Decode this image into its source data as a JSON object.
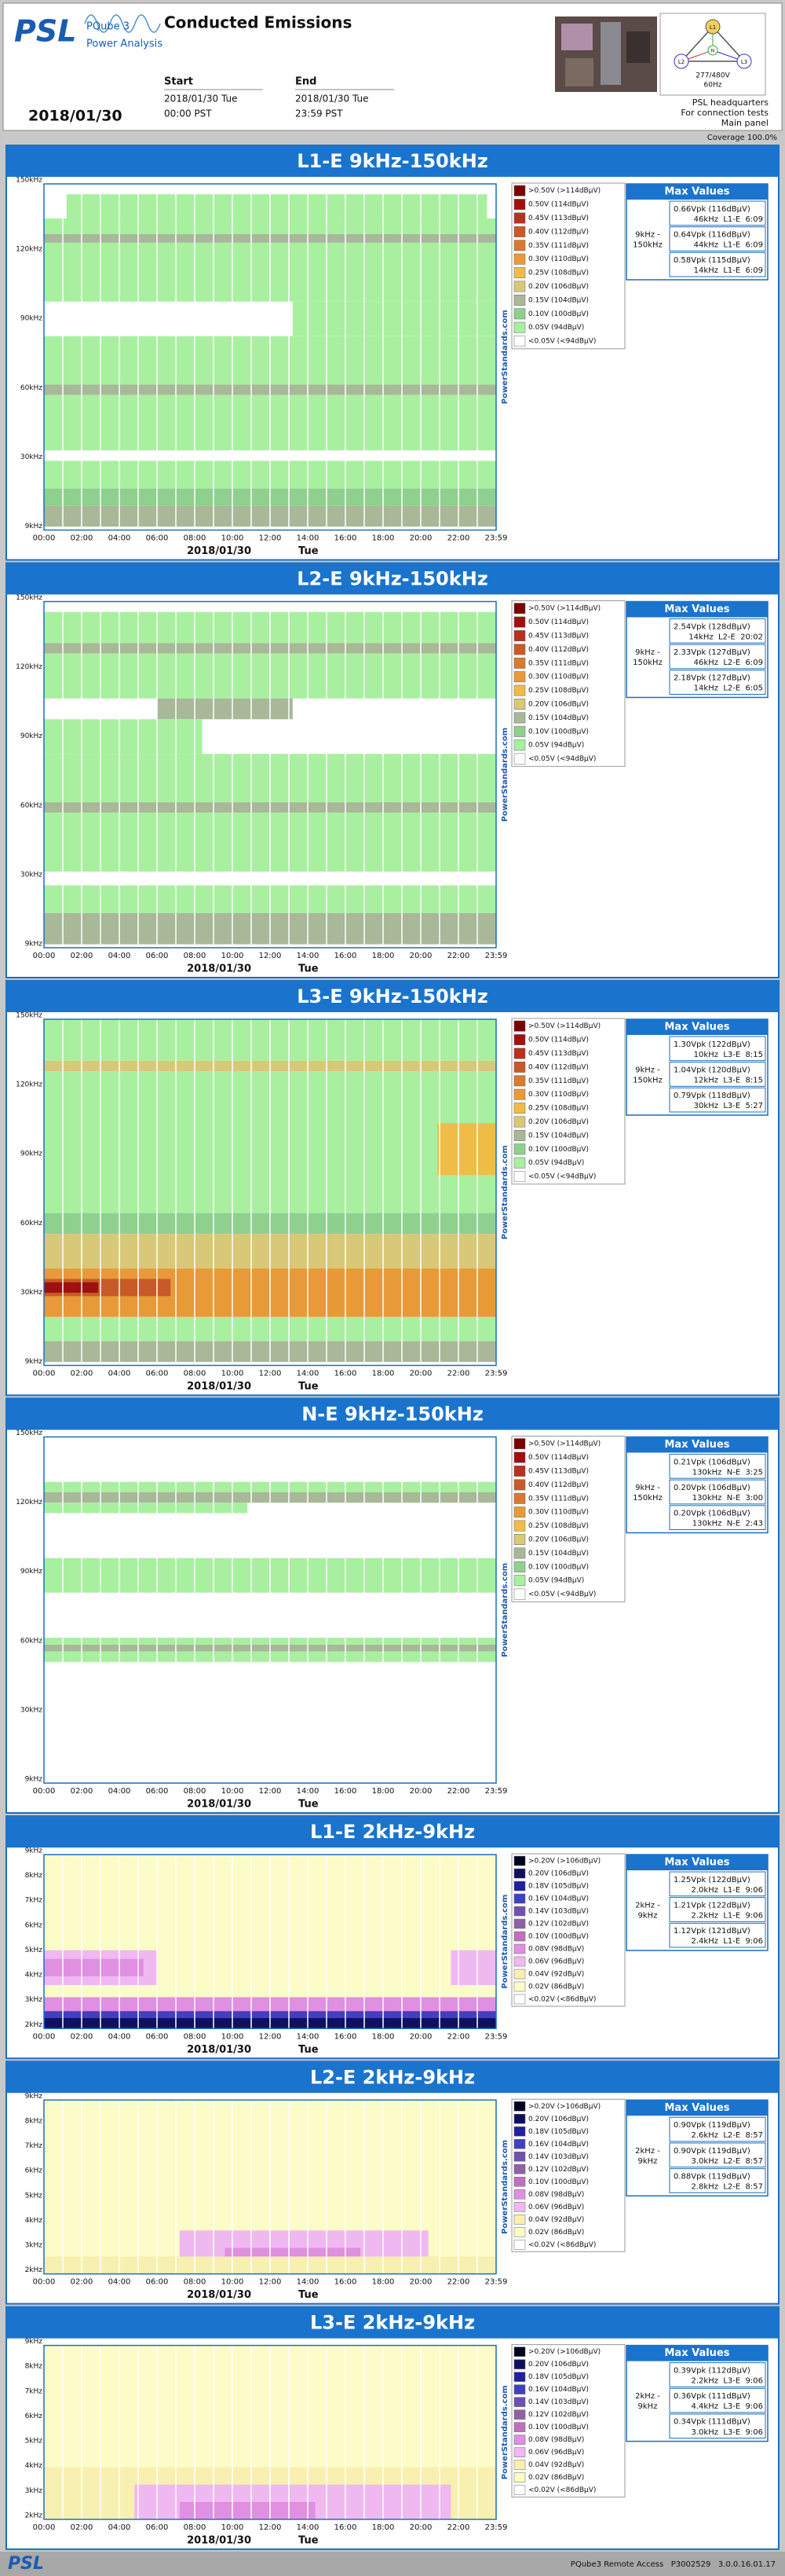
{
  "header": {
    "logo": "PSL",
    "product": "PQube 3",
    "subtitle": "Power Analysis",
    "title": "Conducted Emissions",
    "start": {
      "label": "Start",
      "date": "2018/01/30 Tue",
      "time": "00:00 PST"
    },
    "end": {
      "label": "End",
      "date": "2018/01/30 Tue",
      "time": "23:59 PST"
    },
    "report_date": "2018/01/30",
    "diagram": {
      "phases": [
        "L1",
        "L2",
        "L3"
      ],
      "neutral": "N",
      "voltage": "277/480V",
      "frequency": "60Hz"
    },
    "site": [
      "PSL headquarters",
      "For connection tests",
      "Main panel"
    ],
    "coverage": "Coverage 100.0%"
  },
  "panels": [
    {
      "title": "L1-E 9kHz-150kHz",
      "y_labels": [
        "150kHz",
        "120kHz",
        "90kHz",
        "60kHz",
        "30kHz",
        "9kHz"
      ],
      "x_labels": [
        "00:00",
        "02:00",
        "04:00",
        "06:00",
        "08:00",
        "10:00",
        "12:00",
        "14:00",
        "16:00",
        "18:00",
        "20:00",
        "22:00",
        "23:59"
      ],
      "date": "2018/01/30",
      "day": "Tue",
      "watermark": "PowerStandards.com",
      "legend": {
        "labels": [
          ">0.50V (>114dBμV)",
          "0.50V (114dBμV)",
          "0.45V (113dBμV)",
          "0.40V (112dBμV)",
          "0.35V (111dBμV)",
          "0.30V (110dBμV)",
          "0.25V (108dBμV)",
          "0.20V (106dBμV)",
          "0.15V (104dBμV)",
          "0.10V (100dBμV)",
          "0.05V (94dBμV)",
          "<0.05V (<94dBμV)"
        ],
        "colors": [
          "#7a0000",
          "#a01010",
          "#b83020",
          "#c85a28",
          "#d87a30",
          "#e89a38",
          "#f0bc48",
          "#d8c878",
          "#a8b898",
          "#8fd08f",
          "#a8f0a0",
          "#ffffff"
        ]
      },
      "max_values": {
        "title": "Max Values",
        "band": [
          "9kHz -",
          "150kHz"
        ],
        "rows": [
          {
            "value": "0.66Vpk (116dBμV)",
            "detail": "46kHz  L1-E  6:09"
          },
          {
            "value": "0.64Vpk (116dBμV)",
            "detail": "44kHz  L1-E  6:09"
          },
          {
            "value": "0.58Vpk (115dBμV)",
            "detail": "14kHz  L1-E  6:09"
          }
        ]
      }
    },
    {
      "title": "L2-E 9kHz-150kHz",
      "y_labels": [
        "150kHz",
        "120kHz",
        "90kHz",
        "60kHz",
        "30kHz",
        "9kHz"
      ],
      "x_labels": [
        "00:00",
        "02:00",
        "04:00",
        "06:00",
        "08:00",
        "10:00",
        "12:00",
        "14:00",
        "16:00",
        "18:00",
        "20:00",
        "22:00",
        "23:59"
      ],
      "date": "2018/01/30",
      "day": "Tue",
      "watermark": "PowerStandards.com",
      "legend": {
        "labels": [
          ">0.50V (>114dBμV)",
          "0.50V (114dBμV)",
          "0.45V (113dBμV)",
          "0.40V (112dBμV)",
          "0.35V (111dBμV)",
          "0.30V (110dBμV)",
          "0.25V (108dBμV)",
          "0.20V (106dBμV)",
          "0.15V (104dBμV)",
          "0.10V (100dBμV)",
          "0.05V (94dBμV)",
          "<0.05V (<94dBμV)"
        ],
        "colors": [
          "#7a0000",
          "#a01010",
          "#b83020",
          "#c85a28",
          "#d87a30",
          "#e89a38",
          "#f0bc48",
          "#d8c878",
          "#a8b898",
          "#8fd08f",
          "#a8f0a0",
          "#ffffff"
        ]
      },
      "max_values": {
        "title": "Max Values",
        "band": [
          "9kHz -",
          "150kHz"
        ],
        "rows": [
          {
            "value": "2.54Vpk (128dBμV)",
            "detail": "14kHz  L2-E  20:02"
          },
          {
            "value": "2.33Vpk (127dBμV)",
            "detail": "46kHz  L2-E  6:09"
          },
          {
            "value": "2.18Vpk (127dBμV)",
            "detail": "14kHz  L2-E  6:05"
          }
        ]
      }
    },
    {
      "title": "L3-E 9kHz-150kHz",
      "y_labels": [
        "150kHz",
        "120kHz",
        "90kHz",
        "60kHz",
        "30kHz",
        "9kHz"
      ],
      "x_labels": [
        "00:00",
        "02:00",
        "04:00",
        "06:00",
        "08:00",
        "10:00",
        "12:00",
        "14:00",
        "16:00",
        "18:00",
        "20:00",
        "22:00",
        "23:59"
      ],
      "date": "2018/01/30",
      "day": "Tue",
      "watermark": "PowerStandards.com",
      "legend": {
        "labels": [
          ">0.50V (>114dBμV)",
          "0.50V (114dBμV)",
          "0.45V (113dBμV)",
          "0.40V (112dBμV)",
          "0.35V (111dBμV)",
          "0.30V (110dBμV)",
          "0.25V (108dBμV)",
          "0.20V (106dBμV)",
          "0.15V (104dBμV)",
          "0.10V (100dBμV)",
          "0.05V (94dBμV)",
          "<0.05V (<94dBμV)"
        ],
        "colors": [
          "#7a0000",
          "#a01010",
          "#b83020",
          "#c85a28",
          "#d87a30",
          "#e89a38",
          "#f0bc48",
          "#d8c878",
          "#a8b898",
          "#8fd08f",
          "#a8f0a0",
          "#ffffff"
        ]
      },
      "max_values": {
        "title": "Max Values",
        "band": [
          "9kHz -",
          "150kHz"
        ],
        "rows": [
          {
            "value": "1.30Vpk (122dBμV)",
            "detail": "10kHz  L3-E  8:15"
          },
          {
            "value": "1.04Vpk (120dBμV)",
            "detail": "12kHz  L3-E  8:15"
          },
          {
            "value": "0.79Vpk (118dBμV)",
            "detail": "30kHz  L3-E  5:27"
          }
        ]
      }
    },
    {
      "title": "N-E 9kHz-150kHz",
      "y_labels": [
        "150kHz",
        "120kHz",
        "90kHz",
        "60kHz",
        "30kHz",
        "9kHz"
      ],
      "x_labels": [
        "00:00",
        "02:00",
        "04:00",
        "06:00",
        "08:00",
        "10:00",
        "12:00",
        "14:00",
        "16:00",
        "18:00",
        "20:00",
        "22:00",
        "23:59"
      ],
      "date": "2018/01/30",
      "day": "Tue",
      "watermark": "PowerStandards.com",
      "legend": {
        "labels": [
          ">0.50V (>114dBμV)",
          "0.50V (114dBμV)",
          "0.45V (113dBμV)",
          "0.40V (112dBμV)",
          "0.35V (111dBμV)",
          "0.30V (110dBμV)",
          "0.25V (108dBμV)",
          "0.20V (106dBμV)",
          "0.15V (104dBμV)",
          "0.10V (100dBμV)",
          "0.05V (94dBμV)",
          "<0.05V (<94dBμV)"
        ],
        "colors": [
          "#7a0000",
          "#a01010",
          "#b83020",
          "#c85a28",
          "#d87a30",
          "#e89a38",
          "#f0bc48",
          "#d8c878",
          "#a8b898",
          "#8fd08f",
          "#a8f0a0",
          "#ffffff"
        ]
      },
      "max_values": {
        "title": "Max Values",
        "band": [
          "9kHz -",
          "150kHz"
        ],
        "rows": [
          {
            "value": "0.21Vpk (106dBμV)",
            "detail": "130kHz  N-E  3:25"
          },
          {
            "value": "0.20Vpk (106dBμV)",
            "detail": "130kHz  N-E  3:00"
          },
          {
            "value": "0.20Vpk (106dBμV)",
            "detail": "130kHz  N-E  2:43"
          }
        ]
      }
    },
    {
      "title": "L1-E 2kHz-9kHz",
      "y_labels": [
        "9kHz",
        "8kHz",
        "7kHz",
        "6kHz",
        "5kHz",
        "4kHz",
        "3kHz",
        "2kHz"
      ],
      "x_labels": [
        "00:00",
        "02:00",
        "04:00",
        "06:00",
        "08:00",
        "10:00",
        "12:00",
        "14:00",
        "16:00",
        "18:00",
        "20:00",
        "22:00",
        "23:59"
      ],
      "date": "2018/01/30",
      "day": "Tue",
      "watermark": "PowerStandards.com",
      "legend": {
        "labels": [
          ">0.20V (>106dBμV)",
          "0.20V (106dBμV)",
          "0.18V (105dBμV)",
          "0.16V (104dBμV)",
          "0.14V (103dBμV)",
          "0.12V (102dBμV)",
          "0.10V (100dBμV)",
          "0.08V (98dBμV)",
          "0.06V (96dBμV)",
          "0.04V (92dBμV)",
          "0.02V (86dBμV)",
          "<0.02V (<86dBμV)"
        ],
        "colors": [
          "#000020",
          "#101060",
          "#2020a0",
          "#4040c0",
          "#7050b0",
          "#9060a8",
          "#c070c0",
          "#e090e0",
          "#f0b8f0",
          "#f8f0b0",
          "#fcfcc8",
          "#ffffff"
        ]
      },
      "max_values": {
        "title": "Max Values",
        "band": [
          "2kHz -",
          "9kHz"
        ],
        "rows": [
          {
            "value": "1.25Vpk (122dBμV)",
            "detail": "2.0kHz  L1-E  9:06"
          },
          {
            "value": "1.21Vpk (122dBμV)",
            "detail": "2.2kHz  L1-E  9:06"
          },
          {
            "value": "1.12Vpk (121dBμV)",
            "detail": "2.4kHz  L1-E  9:06"
          }
        ]
      }
    },
    {
      "title": "L2-E 2kHz-9kHz",
      "y_labels": [
        "9kHz",
        "8kHz",
        "7kHz",
        "6kHz",
        "5kHz",
        "4kHz",
        "3kHz",
        "2kHz"
      ],
      "x_labels": [
        "00:00",
        "02:00",
        "04:00",
        "06:00",
        "08:00",
        "10:00",
        "12:00",
        "14:00",
        "16:00",
        "18:00",
        "20:00",
        "22:00",
        "23:59"
      ],
      "date": "2018/01/30",
      "day": "Tue",
      "watermark": "PowerStandards.com",
      "legend": {
        "labels": [
          ">0.20V (>106dBμV)",
          "0.20V (106dBμV)",
          "0.18V (105dBμV)",
          "0.16V (104dBμV)",
          "0.14V (103dBμV)",
          "0.12V (102dBμV)",
          "0.10V (100dBμV)",
          "0.08V (98dBμV)",
          "0.06V (96dBμV)",
          "0.04V (92dBμV)",
          "0.02V (86dBμV)",
          "<0.02V (<86dBμV)"
        ],
        "colors": [
          "#000020",
          "#101060",
          "#2020a0",
          "#4040c0",
          "#7050b0",
          "#9060a8",
          "#c070c0",
          "#e090e0",
          "#f0b8f0",
          "#f8f0b0",
          "#fcfcc8",
          "#ffffff"
        ]
      },
      "max_values": {
        "title": "Max Values",
        "band": [
          "2kHz -",
          "9kHz"
        ],
        "rows": [
          {
            "value": "0.90Vpk (119dBμV)",
            "detail": "2.6kHz  L2-E  8:57"
          },
          {
            "value": "0.90Vpk (119dBμV)",
            "detail": "3.0kHz  L2-E  8:57"
          },
          {
            "value": "0.88Vpk (119dBμV)",
            "detail": "2.8kHz  L2-E  8:57"
          }
        ]
      }
    },
    {
      "title": "L3-E 2kHz-9kHz",
      "y_labels": [
        "9kHz",
        "8kHz",
        "7kHz",
        "6kHz",
        "5kHz",
        "4kHz",
        "3kHz",
        "2kHz"
      ],
      "x_labels": [
        "00:00",
        "02:00",
        "04:00",
        "06:00",
        "08:00",
        "10:00",
        "12:00",
        "14:00",
        "16:00",
        "18:00",
        "20:00",
        "22:00",
        "23:59"
      ],
      "date": "2018/01/30",
      "day": "Tue",
      "watermark": "PowerStandards.com",
      "legend": {
        "labels": [
          ">0.20V (>106dBμV)",
          "0.20V (106dBμV)",
          "0.18V (105dBμV)",
          "0.16V (104dBμV)",
          "0.14V (103dBμV)",
          "0.12V (102dBμV)",
          "0.10V (100dBμV)",
          "0.08V (98dBμV)",
          "0.06V (96dBμV)",
          "0.04V (92dBμV)",
          "0.02V (86dBμV)",
          "<0.02V (<86dBμV)"
        ],
        "colors": [
          "#000020",
          "#101060",
          "#2020a0",
          "#4040c0",
          "#7050b0",
          "#9060a8",
          "#c070c0",
          "#e090e0",
          "#f0b8f0",
          "#f8f0b0",
          "#fcfcc8",
          "#ffffff"
        ]
      },
      "max_values": {
        "title": "Max Values",
        "band": [
          "2kHz -",
          "9kHz"
        ],
        "rows": [
          {
            "value": "0.39Vpk (112dBμV)",
            "detail": "2.2kHz  L3-E  9:06"
          },
          {
            "value": "0.36Vpk (111dBμV)",
            "detail": "4.4kHz  L3-E  9:06"
          },
          {
            "value": "0.34Vpk (111dBμV)",
            "detail": "3.0kHz  L3-E  9:06"
          }
        ]
      }
    }
  ],
  "footer": {
    "logo": "PSL",
    "text": "PQube3 Remote Access   P3002529   3.0.0.16.01.17"
  }
}
